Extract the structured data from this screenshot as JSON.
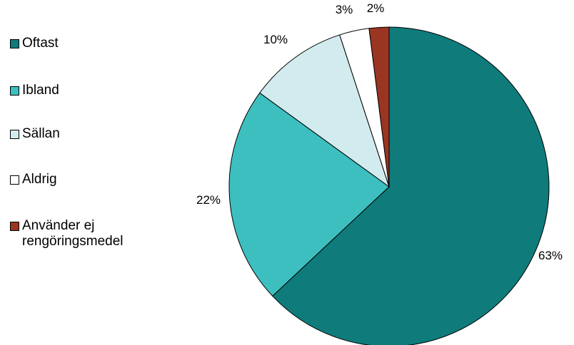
{
  "chart_data": {
    "type": "pie",
    "title": "",
    "legend_position": "left",
    "start_angle": "12 o'clock",
    "direction": "clockwise",
    "slices": [
      {
        "label": "Oftast",
        "value": 63,
        "display": "63%",
        "color": "#0f7b7b"
      },
      {
        "label": "Ibland",
        "value": 22,
        "display": "22%",
        "color": "#3dbfc0"
      },
      {
        "label": "Sällan",
        "value": 10,
        "display": "10%",
        "color": "#d2ebee"
      },
      {
        "label": "Aldrig",
        "value": 3,
        "display": "3%",
        "color": "#ffffff"
      },
      {
        "label": "Använder ej rengöringsmedel",
        "value": 2,
        "display": "2%",
        "color": "#9a3522"
      }
    ]
  }
}
